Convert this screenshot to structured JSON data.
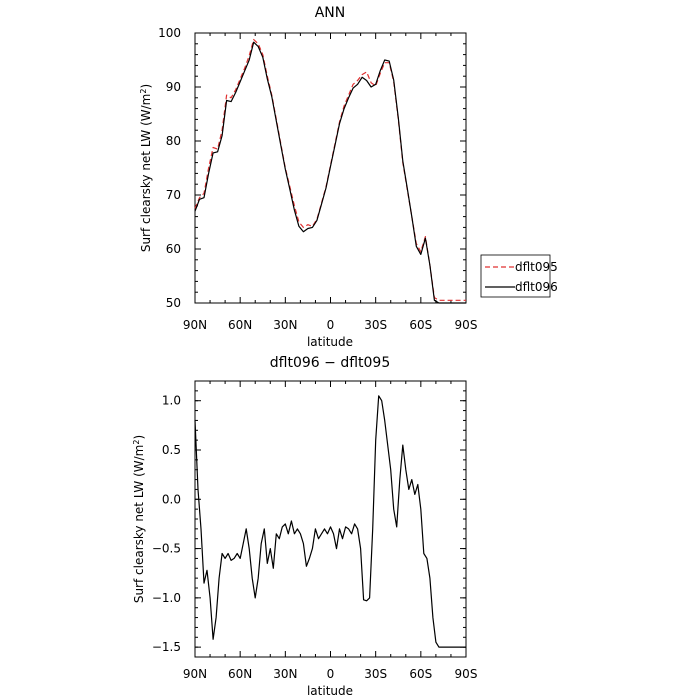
{
  "chart_data": [
    {
      "type": "line",
      "title": "ANN",
      "xlabel": "latitude",
      "ylabel": "Surf clearsky net LW (W/m²)",
      "ylabel_parts": {
        "main": "Surf clearsky net LW (W/m",
        "sup": "2",
        "close": ")"
      },
      "xlim": [
        90,
        -90
      ],
      "ylim": [
        50,
        100
      ],
      "xticks": [
        90,
        60,
        30,
        0,
        -30,
        -60,
        -90
      ],
      "xtick_labels": [
        "90N",
        "60N",
        "30N",
        "0",
        "30S",
        "60S",
        "90S"
      ],
      "yticks": [
        50,
        60,
        70,
        80,
        90,
        100
      ],
      "ytick_labels": [
        "50",
        "60",
        "70",
        "80",
        "90",
        "100"
      ],
      "legend_position": "right",
      "series": [
        {
          "name": "dflt095",
          "color": "#e03030",
          "dash": "dashed",
          "x": [
            90,
            87,
            84,
            81,
            78,
            75,
            72,
            69,
            66,
            63,
            60,
            57,
            54,
            51,
            48,
            45,
            42,
            39,
            36,
            33,
            30,
            27,
            24,
            21,
            18,
            15,
            12,
            9,
            6,
            3,
            0,
            -3,
            -6,
            -9,
            -12,
            -15,
            -18,
            -21,
            -24,
            -27,
            -30,
            -33,
            -36,
            -39,
            -42,
            -45,
            -48,
            -51,
            -54,
            -57,
            -60,
            -63,
            -66,
            -69,
            -72,
            -75,
            -78,
            -81,
            -84,
            -87,
            -90
          ],
          "y": [
            67.5,
            69.5,
            70.3,
            75,
            78.8,
            78.5,
            82,
            88.5,
            88,
            89.5,
            91.5,
            93.5,
            95.8,
            98.8,
            98,
            96,
            92,
            88.5,
            84,
            79.5,
            75,
            71.5,
            68,
            65,
            64,
            64.5,
            64.2,
            65.5,
            68.5,
            71.5,
            75.5,
            79.5,
            83.5,
            86.5,
            88.5,
            90.5,
            91.2,
            92.3,
            92.8,
            90.8,
            90.2,
            92.5,
            94.5,
            94.5,
            91,
            84,
            76,
            71,
            66,
            61,
            59.5,
            62.3,
            57,
            51,
            50.5,
            50.5,
            50.5,
            50.5,
            50.5,
            50.5,
            50.5
          ]
        },
        {
          "name": "dflt096",
          "color": "#000000",
          "dash": "solid",
          "x": [
            90,
            87,
            84,
            81,
            78,
            75,
            72,
            69,
            66,
            63,
            60,
            57,
            54,
            51,
            48,
            45,
            42,
            39,
            36,
            33,
            30,
            27,
            24,
            21,
            18,
            15,
            12,
            9,
            6,
            3,
            0,
            -3,
            -6,
            -9,
            -12,
            -15,
            -18,
            -21,
            -24,
            -27,
            -30,
            -33,
            -36,
            -39,
            -42,
            -45,
            -48,
            -51,
            -54,
            -57,
            -60,
            -63,
            -66,
            -69,
            -72,
            -75,
            -78,
            -81,
            -84,
            -87,
            -90
          ],
          "y": [
            67,
            69.2,
            69.5,
            74,
            77.8,
            78,
            81,
            87.5,
            87.3,
            89,
            91,
            93,
            95,
            98.3,
            97.5,
            95.5,
            91.5,
            88.2,
            83.7,
            79.2,
            74.8,
            71,
            67.2,
            64.2,
            63.2,
            63.8,
            64,
            65.3,
            68.3,
            71.3,
            75.3,
            79.2,
            83.2,
            86,
            88,
            89.8,
            90.5,
            91.8,
            91.2,
            90,
            90.5,
            93,
            95,
            94.8,
            91.3,
            84.3,
            76.3,
            71.2,
            66,
            60.5,
            59,
            62,
            57,
            50.5,
            50,
            50,
            50,
            50,
            50,
            50,
            50
          ]
        }
      ]
    },
    {
      "type": "line",
      "title": "dflt096 − dflt095",
      "xlabel": "latitude",
      "ylabel": "Surf clearsky net LW (W/m²)",
      "ylabel_parts": {
        "main": "Surf clearsky net LW (W/m",
        "sup": "2",
        "close": ")"
      },
      "xlim": [
        90,
        -90
      ],
      "ylim": [
        -1.6,
        1.2
      ],
      "xticks": [
        90,
        60,
        30,
        0,
        -30,
        -60,
        -90
      ],
      "xtick_labels": [
        "90N",
        "60N",
        "30N",
        "0",
        "30S",
        "60S",
        "90S"
      ],
      "yticks": [
        -1.5,
        -1.0,
        -0.5,
        0.0,
        0.5,
        1.0
      ],
      "ytick_labels": [
        "−1.5",
        "−1.0",
        "−0.5",
        "0.0",
        "0.5",
        "1.0"
      ],
      "series": [
        {
          "color": "#000000",
          "dash": "solid",
          "x": [
            90,
            88,
            86,
            84,
            82,
            80,
            78,
            76,
            74,
            72,
            70,
            68,
            66,
            64,
            62,
            60,
            58,
            56,
            54,
            52,
            50,
            48,
            46,
            44,
            42,
            40,
            38,
            36,
            34,
            32,
            30,
            28,
            26,
            24,
            22,
            20,
            18,
            16,
            14,
            12,
            10,
            8,
            6,
            4,
            2,
            0,
            -2,
            -4,
            -6,
            -8,
            -10,
            -12,
            -14,
            -16,
            -18,
            -20,
            -22,
            -24,
            -26,
            -28,
            -30,
            -32,
            -34,
            -36,
            -38,
            -40,
            -42,
            -44,
            -46,
            -48,
            -50,
            -52,
            -54,
            -56,
            -58,
            -60,
            -62,
            -64,
            -66,
            -68,
            -70,
            -72,
            -74,
            -76,
            -78,
            -80,
            -82,
            -84,
            -86,
            -88,
            -90
          ],
          "y": [
            0.8,
            0.1,
            -0.3,
            -0.85,
            -0.72,
            -1.0,
            -1.42,
            -1.2,
            -0.8,
            -0.55,
            -0.6,
            -0.55,
            -0.62,
            -0.6,
            -0.55,
            -0.6,
            -0.45,
            -0.3,
            -0.5,
            -0.8,
            -1.0,
            -0.8,
            -0.45,
            -0.3,
            -0.65,
            -0.5,
            -0.7,
            -0.35,
            -0.4,
            -0.28,
            -0.25,
            -0.35,
            -0.22,
            -0.35,
            -0.3,
            -0.35,
            -0.45,
            -0.68,
            -0.6,
            -0.5,
            -0.3,
            -0.4,
            -0.35,
            -0.3,
            -0.35,
            -0.28,
            -0.35,
            -0.5,
            -0.3,
            -0.4,
            -0.28,
            -0.3,
            -0.35,
            -0.25,
            -0.3,
            -0.5,
            -1.02,
            -1.03,
            -1.0,
            -0.3,
            0.6,
            1.05,
            1.0,
            0.8,
            0.55,
            0.3,
            -0.1,
            -0.28,
            0.2,
            0.55,
            0.3,
            0.1,
            0.2,
            0.05,
            0.15,
            -0.1,
            -0.55,
            -0.6,
            -0.8,
            -1.2,
            -1.45,
            -1.5,
            -1.5,
            -1.5,
            -1.5,
            -1.5,
            -1.5,
            -1.5,
            -1.5,
            -1.5,
            -1.5
          ]
        }
      ]
    }
  ]
}
